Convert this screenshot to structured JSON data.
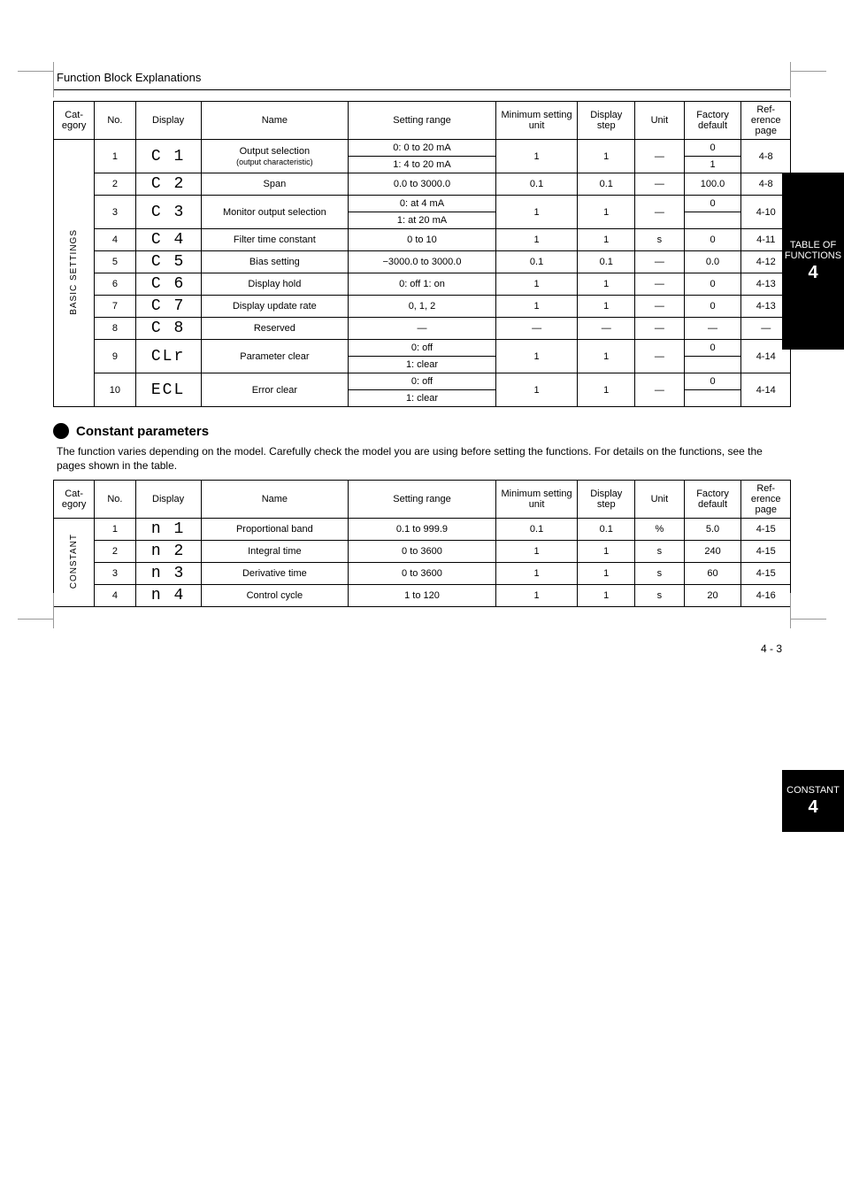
{
  "page": {
    "header": "Function Block Explanations",
    "footer": "4 - 3"
  },
  "side_tabs": {
    "t1": {
      "line1": "TABLE OF",
      "line2": "FUNCTIONS",
      "num": "4"
    },
    "t2": {
      "line1": "CONSTANT",
      "num": "4"
    }
  },
  "section_intro": "The function varies depending on the model. Carefully check the model you are using before setting the functions.\nFor details on the functions, see the pages shown in the table.",
  "table1": {
    "headers": {
      "cat": "Cat-\negory",
      "no": "No.",
      "disp": "Display",
      "name": "Name",
      "range": "Setting range",
      "min": "Minimum\nsetting unit",
      "step": "Display\nstep",
      "unit": "Unit",
      "def": "Factory\ndefault",
      "ref": "Ref-\nerence\npage"
    },
    "category": "BASIC SETTINGS",
    "rows": [
      {
        "no": "1",
        "no_row2": "",
        "seg": "C  1",
        "name_l1": "Output selection",
        "name_l2": "(output characteristic)",
        "range_l1": "0: 0 to 20 mA",
        "range_l2": "1: 4 to 20 mA",
        "min": "1",
        "step": "1",
        "unit": "—",
        "def_l1": "0",
        "def_l2": "1",
        "ref_l1": "4-8",
        "ref_l2": ""
      },
      {
        "no": "2",
        "seg": "C  2",
        "name_l1": "Span",
        "name_l2": "",
        "range_l1": "0.0 to 3000.0",
        "range_l2": "",
        "min": "0.1",
        "step": "0.1",
        "unit": "—",
        "def_l1": "100.0",
        "def_l2": "",
        "ref_l1": "4-8",
        "ref_l2": ""
      },
      {
        "no": "3",
        "seg": "C  3",
        "name_l1": "Monitor output selection",
        "name_l2": "",
        "range_l1": "0: at 4 mA",
        "range_l2": "1: at 20 mA",
        "min": "1",
        "step": "1",
        "unit": "—",
        "def_l1": "0",
        "def_l2": "",
        "ref_l1": "4-10",
        "ref_l2": ""
      },
      {
        "no": "4",
        "seg": "C  4",
        "name_l1": "Filter time constant",
        "name_l2": "",
        "range_l1": "0 to 10",
        "range_l2": "",
        "min": "1",
        "step": "1",
        "unit": "s",
        "def_l1": "0",
        "def_l2": "",
        "ref_l1": "4-11",
        "ref_l2": ""
      },
      {
        "no": "5",
        "seg": "C  5",
        "name_l1": "Bias setting",
        "name_l2": "",
        "range_l1": "−3000.0 to 3000.0",
        "range_l2": "",
        "min": "0.1",
        "step": "0.1",
        "unit": "—",
        "def_l1": "0.0",
        "def_l2": "",
        "ref_l1": "4-12",
        "ref_l2": ""
      },
      {
        "no": "6",
        "seg": "C  6",
        "name_l1": "Display hold",
        "name_l2": "",
        "range_l1": "0: off  1: on",
        "range_l2": "",
        "min": "1",
        "step": "1",
        "unit": "—",
        "def_l1": "0",
        "def_l2": "",
        "ref_l1": "4-13",
        "ref_l2": ""
      },
      {
        "no": "7",
        "seg": "C  7",
        "name_l1": "Display update rate",
        "name_l2": "",
        "range_l1": "0, 1, 2",
        "range_l2": "",
        "min": "1",
        "step": "1",
        "unit": "—",
        "def_l1": "0",
        "def_l2": "",
        "ref_l1": "4-13",
        "ref_l2": ""
      },
      {
        "no": "8",
        "seg": "C  8",
        "name_l1": "Reserved",
        "name_l2": "",
        "range_l1": "—",
        "range_l2": "",
        "min": "—",
        "step": "—",
        "unit": "—",
        "def_l1": "—",
        "def_l2": "",
        "ref_l1": "—",
        "ref_l2": ""
      },
      {
        "no": "9",
        "seg": "CLr",
        "name_l1": "Parameter clear",
        "name_l2": "",
        "range_l1": "0: off",
        "range_l2": "1: clear",
        "min": "1",
        "step": "1",
        "unit": "—",
        "def_l1": "0",
        "def_l2": "",
        "ref_l1": "4-14",
        "ref_l2": ""
      },
      {
        "no": "10",
        "seg": "ECL",
        "name_l1": "Error clear",
        "name_l2": "",
        "range_l1": "0: off",
        "range_l2": "1: clear",
        "min": "1",
        "step": "1",
        "unit": "—",
        "def_l1": "0",
        "def_l2": "",
        "ref_l1": "4-14",
        "ref_l2": ""
      }
    ]
  },
  "section2": {
    "heading": "Constant parameters"
  },
  "table2": {
    "headers": {
      "cat": "Cat-\negory",
      "no": "No.",
      "disp": "Display",
      "name": "Name",
      "range": "Setting range",
      "min": "Minimum\nsetting unit",
      "step": "Display\nstep",
      "unit": "Unit",
      "def": "Factory\ndefault",
      "ref": "Ref-\nerence\npage"
    },
    "category": "CONSTANT",
    "rows": [
      {
        "no": "1",
        "seg": "n  1",
        "name_l1": "Proportional band",
        "name_l2": "",
        "range_l1": "0.1 to 999.9",
        "range_l2": "",
        "min": "0.1",
        "step": "0.1",
        "unit": "%",
        "def_l1": "5.0",
        "def_l2": "",
        "ref_l1": "4-15",
        "ref_l2": ""
      },
      {
        "no": "2",
        "seg": "n  2",
        "name_l1": "Integral time",
        "name_l2": "",
        "range_l1": "0 to 3600",
        "range_l2": "",
        "min": "1",
        "step": "1",
        "unit": "s",
        "def_l1": "240",
        "def_l2": "",
        "ref_l1": "4-15",
        "ref_l2": ""
      },
      {
        "no": "3",
        "seg": "n  3",
        "name_l1": "Derivative time",
        "name_l2": "",
        "range_l1": "0 to 3600",
        "range_l2": "",
        "min": "1",
        "step": "1",
        "unit": "s",
        "def_l1": "60",
        "def_l2": "",
        "ref_l1": "4-15",
        "ref_l2": ""
      },
      {
        "no": "4",
        "seg": "n  4",
        "name_l1": "Control cycle",
        "name_l2": "",
        "range_l1": "1 to 120",
        "range_l2": "",
        "min": "1",
        "step": "1",
        "unit": "s",
        "def_l1": "20",
        "def_l2": "",
        "ref_l1": "4-16",
        "ref_l2": ""
      }
    ]
  },
  "style": {
    "border_color": "#000000",
    "bg_color": "#ffffff",
    "tab_bg": "#000000",
    "tab_fg": "#ffffff",
    "body_fontsize_pt": 8,
    "seg_fontsize_pt": 14
  }
}
